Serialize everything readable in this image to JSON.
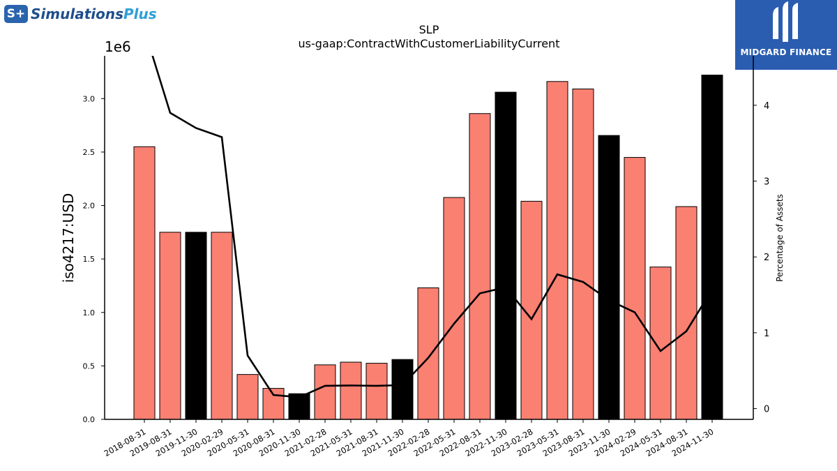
{
  "brand_left": {
    "prefix": "S+",
    "name": "Simulations",
    "name_accent": "Plus"
  },
  "brand_right": {
    "name": "MIDGARD FINANCE"
  },
  "colors": {
    "bar": "#fa8072",
    "bar_highlight": "#000000",
    "line": "#000000"
  },
  "chart_data": {
    "type": "bar",
    "title": "SLP",
    "subtitle": "us-gaap:ContractWithCustomerLiabilityCurrent",
    "ylabel": "iso4217:USD",
    "ylabel_right": "Percentage of Assets",
    "y_multiplier_label": "1e6",
    "ylim": [
      0,
      3400000
    ],
    "yticks": [
      "0.0",
      "0.5",
      "1.0",
      "1.5",
      "2.0",
      "2.5",
      "3.0"
    ],
    "ylim_right": [
      -0.142,
      4.652
    ],
    "yticks_right": [
      "0",
      "1",
      "2",
      "3",
      "4"
    ],
    "categories": [
      "2018-08-31",
      "2019-08-31",
      "2019-11-30",
      "2020-02-29",
      "2020-05-31",
      "2020-08-31",
      "2020-11-30",
      "2021-02-28",
      "2021-05-31",
      "2021-08-31",
      "2021-11-30",
      "2022-02-28",
      "2022-05-31",
      "2022-08-31",
      "2022-11-30",
      "2023-02-28",
      "2023-05-31",
      "2023-08-31",
      "2023-11-30",
      "2024-02-29",
      "2024-05-31",
      "2024-08-31",
      "2024-11-30"
    ],
    "values": [
      2550000,
      1750000,
      1750000,
      1750000,
      420000,
      290000,
      240000,
      510000,
      535000,
      525000,
      560000,
      1230000,
      2075000,
      2860000,
      3060000,
      2040000,
      3160000,
      3090000,
      2655000,
      2450000,
      1425000,
      1990000,
      3220000
    ],
    "highlight": [
      false,
      false,
      true,
      false,
      false,
      false,
      true,
      false,
      false,
      false,
      true,
      false,
      false,
      false,
      true,
      false,
      false,
      false,
      true,
      false,
      false,
      false,
      true
    ],
    "series": [
      {
        "values": [
          5.0,
          3.9,
          3.7,
          3.58,
          0.7,
          0.18,
          0.15,
          0.3,
          0.305,
          0.3,
          0.31,
          0.67,
          1.12,
          1.52,
          1.6,
          1.18,
          1.77,
          1.67,
          1.43,
          1.27,
          0.76,
          1.02,
          1.57
        ]
      }
    ]
  }
}
